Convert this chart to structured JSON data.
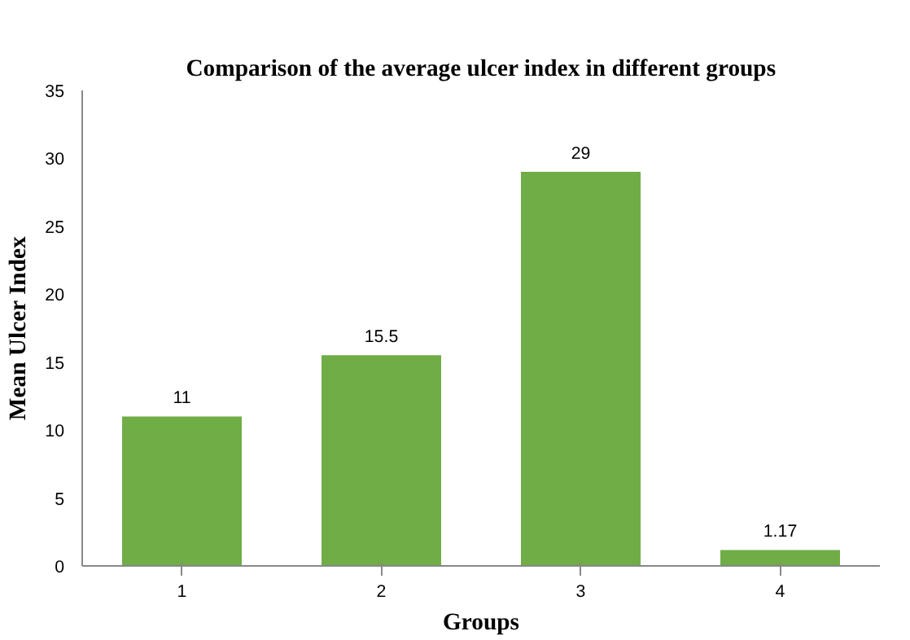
{
  "chart_data": {
    "type": "bar",
    "title": "Comparison of the average ulcer index in different groups",
    "xlabel": "Groups",
    "ylabel": "Mean Ulcer Index",
    "categories": [
      "1",
      "2",
      "3",
      "4"
    ],
    "values": [
      11,
      15.5,
      29,
      1.17
    ],
    "color": "#70ad47",
    "ylim": [
      0,
      35
    ],
    "yticks": [
      0,
      5,
      10,
      15,
      20,
      25,
      30,
      35
    ],
    "data_labels": true,
    "grid": false
  }
}
